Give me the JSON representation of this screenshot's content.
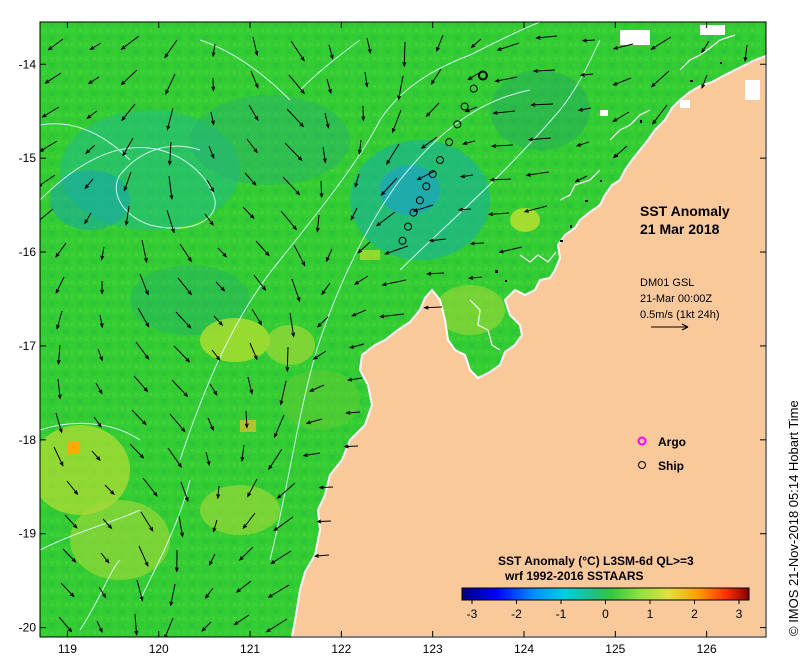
{
  "map": {
    "title_line1": "SST Anomaly",
    "title_line2": "21 Mar 2018",
    "x_ticks": [
      "119",
      "120",
      "121",
      "122",
      "123",
      "124",
      "125",
      "126"
    ],
    "y_ticks": [
      "-14",
      "-15",
      "-16",
      "-17",
      "-18",
      "-19",
      "-20"
    ],
    "lon_range": [
      118.7,
      126.65
    ],
    "lat_range": [
      -20.1,
      -13.55
    ]
  },
  "current_info": {
    "line1": "DM01 GSL",
    "line2": "21-Mar 00:00Z",
    "line3": "0.5m/s (1kt 24h)"
  },
  "legend": {
    "argo_label": "Argo",
    "ship_label": "Ship",
    "argo_color": "#ff00ff",
    "ship_color": "#000000"
  },
  "colorbar": {
    "title_line1": "SST Anomaly (°C) L3SM-6d QL>=3",
    "title_line2": "wrf 1992-2016 SSTAARS",
    "ticks": [
      "-3",
      "-2",
      "-1",
      "0",
      "1",
      "2",
      "3"
    ],
    "colors": [
      "#00007f",
      "#0000ff",
      "#0080ff",
      "#00c0ff",
      "#20d0a0",
      "#30c850",
      "#60d040",
      "#a0e040",
      "#e0e040",
      "#ffc000",
      "#ff6000",
      "#c01000",
      "#800000"
    ]
  },
  "credit": "© IMOS 21-Nov-2018 05:14 Hobart Time",
  "colors": {
    "land": "#f9c89b",
    "sea_green": "#33cc33",
    "sea_cyan": "#22bbaa",
    "sea_yellow": "#bbdd33",
    "contour": "#ddffff"
  },
  "ship_track": [
    {
      "lon": 123.55,
      "lat": -14.12
    },
    {
      "lon": 123.45,
      "lat": -14.26
    },
    {
      "lon": 123.35,
      "lat": -14.45
    },
    {
      "lon": 123.27,
      "lat": -14.64
    },
    {
      "lon": 123.18,
      "lat": -14.83
    },
    {
      "lon": 123.08,
      "lat": -15.02
    },
    {
      "lon": 123.0,
      "lat": -15.17
    },
    {
      "lon": 122.93,
      "lat": -15.3
    },
    {
      "lon": 122.86,
      "lat": -15.45
    },
    {
      "lon": 122.79,
      "lat": -15.58
    },
    {
      "lon": 122.73,
      "lat": -15.73
    },
    {
      "lon": 122.67,
      "lat": -15.88
    }
  ]
}
